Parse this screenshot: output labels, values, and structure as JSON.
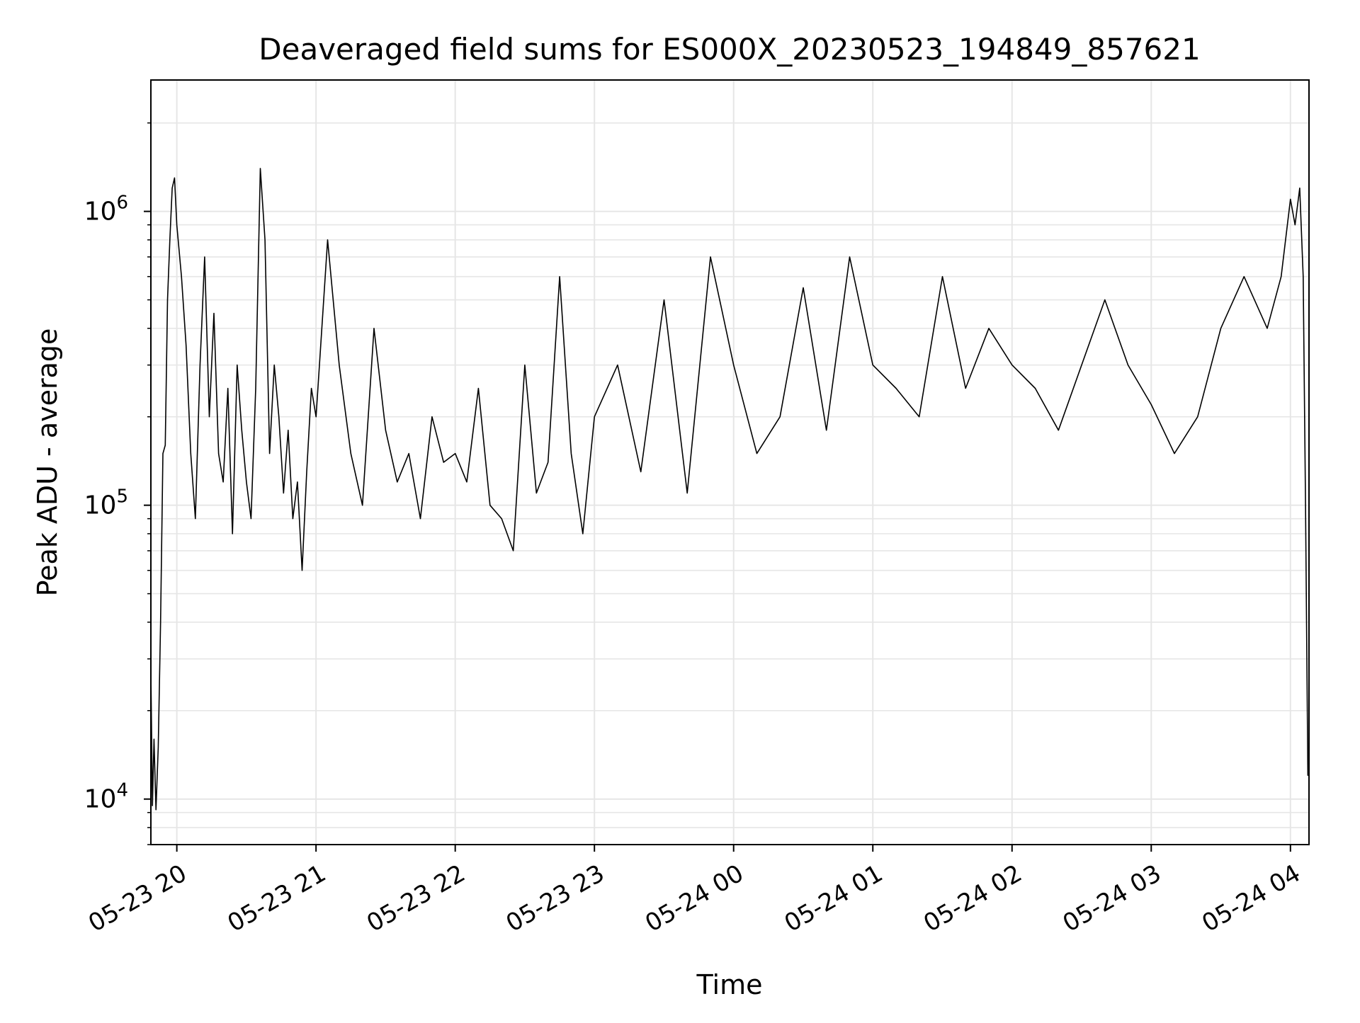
{
  "chart_data": {
    "type": "line",
    "title": "Deaveraged field sums for ES000X_20230523_194849_857621",
    "xlabel": "Time",
    "ylabel": "Peak ADU - average",
    "y_scale": "log",
    "grid": true,
    "legend": "none",
    "line_color": "#000000",
    "grid_color": "#e6e6e6",
    "xlim": [
      "2023-05-23 19:48:49",
      "2023-05-24 04:08:00"
    ],
    "ylim": [
      7000,
      2800000
    ],
    "x_ticks": [
      {
        "value": "2023-05-23 20:00:00",
        "label": "05-23 20"
      },
      {
        "value": "2023-05-23 21:00:00",
        "label": "05-23 21"
      },
      {
        "value": "2023-05-23 22:00:00",
        "label": "05-23 22"
      },
      {
        "value": "2023-05-23 23:00:00",
        "label": "05-23 23"
      },
      {
        "value": "2023-05-24 00:00:00",
        "label": "05-24 00"
      },
      {
        "value": "2023-05-24 01:00:00",
        "label": "05-24 01"
      },
      {
        "value": "2023-05-24 02:00:00",
        "label": "05-24 02"
      },
      {
        "value": "2023-05-24 03:00:00",
        "label": "05-24 03"
      },
      {
        "value": "2023-05-24 04:00:00",
        "label": "05-24 04"
      }
    ],
    "y_ticks": [
      {
        "value": 10000,
        "base": "10",
        "exp": "4"
      },
      {
        "value": 100000,
        "base": "10",
        "exp": "5"
      },
      {
        "value": 1000000,
        "base": "10",
        "exp": "6"
      }
    ],
    "series": [
      {
        "x": [
          "2023-05-23 19:48:49",
          "2023-05-23 19:49:30",
          "2023-05-23 19:50:10",
          "2023-05-23 19:51:00",
          "2023-05-23 19:52:00",
          "2023-05-23 19:53:00",
          "2023-05-23 19:54:00",
          "2023-05-23 19:55:00",
          "2023-05-23 19:56:00",
          "2023-05-23 19:57:00",
          "2023-05-23 19:58:00",
          "2023-05-23 19:59:00",
          "2023-05-23 20:00:00",
          "2023-05-23 20:02:00",
          "2023-05-23 20:04:00",
          "2023-05-23 20:06:00",
          "2023-05-23 20:08:00",
          "2023-05-23 20:10:00",
          "2023-05-23 20:12:00",
          "2023-05-23 20:14:00",
          "2023-05-23 20:16:00",
          "2023-05-23 20:18:00",
          "2023-05-23 20:20:00",
          "2023-05-23 20:22:00",
          "2023-05-23 20:24:00",
          "2023-05-23 20:26:00",
          "2023-05-23 20:28:00",
          "2023-05-23 20:30:00",
          "2023-05-23 20:32:00",
          "2023-05-23 20:34:00",
          "2023-05-23 20:36:00",
          "2023-05-23 20:38:00",
          "2023-05-23 20:40:00",
          "2023-05-23 20:42:00",
          "2023-05-23 20:44:00",
          "2023-05-23 20:46:00",
          "2023-05-23 20:48:00",
          "2023-05-23 20:50:00",
          "2023-05-23 20:52:00",
          "2023-05-23 20:54:00",
          "2023-05-23 20:56:00",
          "2023-05-23 20:58:00",
          "2023-05-23 21:00:00",
          "2023-05-23 21:05:00",
          "2023-05-23 21:10:00",
          "2023-05-23 21:15:00",
          "2023-05-23 21:20:00",
          "2023-05-23 21:25:00",
          "2023-05-23 21:30:00",
          "2023-05-23 21:35:00",
          "2023-05-23 21:40:00",
          "2023-05-23 21:45:00",
          "2023-05-23 21:50:00",
          "2023-05-23 21:55:00",
          "2023-05-23 22:00:00",
          "2023-05-23 22:05:00",
          "2023-05-23 22:10:00",
          "2023-05-23 22:15:00",
          "2023-05-23 22:20:00",
          "2023-05-23 22:25:00",
          "2023-05-23 22:30:00",
          "2023-05-23 22:35:00",
          "2023-05-23 22:40:00",
          "2023-05-23 22:45:00",
          "2023-05-23 22:50:00",
          "2023-05-23 22:55:00",
          "2023-05-23 23:00:00",
          "2023-05-23 23:10:00",
          "2023-05-23 23:20:00",
          "2023-05-23 23:30:00",
          "2023-05-23 23:40:00",
          "2023-05-23 23:50:00",
          "2023-05-24 00:00:00",
          "2023-05-24 00:10:00",
          "2023-05-24 00:20:00",
          "2023-05-24 00:30:00",
          "2023-05-24 00:40:00",
          "2023-05-24 00:50:00",
          "2023-05-24 01:00:00",
          "2023-05-24 01:10:00",
          "2023-05-24 01:20:00",
          "2023-05-24 01:30:00",
          "2023-05-24 01:40:00",
          "2023-05-24 01:50:00",
          "2023-05-24 02:00:00",
          "2023-05-24 02:10:00",
          "2023-05-24 02:20:00",
          "2023-05-24 02:30:00",
          "2023-05-24 02:40:00",
          "2023-05-24 02:50:00",
          "2023-05-24 03:00:00",
          "2023-05-24 03:10:00",
          "2023-05-24 03:20:00",
          "2023-05-24 03:30:00",
          "2023-05-24 03:40:00",
          "2023-05-24 03:50:00",
          "2023-05-24 03:56:00",
          "2023-05-24 04:00:00",
          "2023-05-24 04:02:00",
          "2023-05-24 04:04:00",
          "2023-05-24 04:05:30",
          "2023-05-24 04:06:30",
          "2023-05-24 04:07:30"
        ],
        "y": [
          27000,
          9500,
          16000,
          9200,
          15000,
          40000,
          150000,
          160000,
          500000,
          800000,
          1200000,
          1300000,
          900000,
          600000,
          350000,
          150000,
          90000,
          300000,
          700000,
          200000,
          450000,
          150000,
          120000,
          250000,
          80000,
          300000,
          180000,
          120000,
          90000,
          250000,
          1400000,
          800000,
          150000,
          300000,
          200000,
          110000,
          180000,
          90000,
          120000,
          60000,
          130000,
          250000,
          200000,
          800000,
          300000,
          150000,
          100000,
          400000,
          180000,
          120000,
          150000,
          90000,
          200000,
          140000,
          150000,
          120000,
          250000,
          100000,
          90000,
          70000,
          300000,
          110000,
          140000,
          600000,
          150000,
          80000,
          200000,
          300000,
          130000,
          500000,
          110000,
          700000,
          300000,
          150000,
          200000,
          550000,
          180000,
          700000,
          300000,
          250000,
          200000,
          600000,
          250000,
          400000,
          300000,
          250000,
          180000,
          300000,
          500000,
          300000,
          220000,
          150000,
          200000,
          400000,
          600000,
          400000,
          600000,
          1100000,
          900000,
          1200000,
          600000,
          100000,
          12000
        ]
      }
    ]
  }
}
